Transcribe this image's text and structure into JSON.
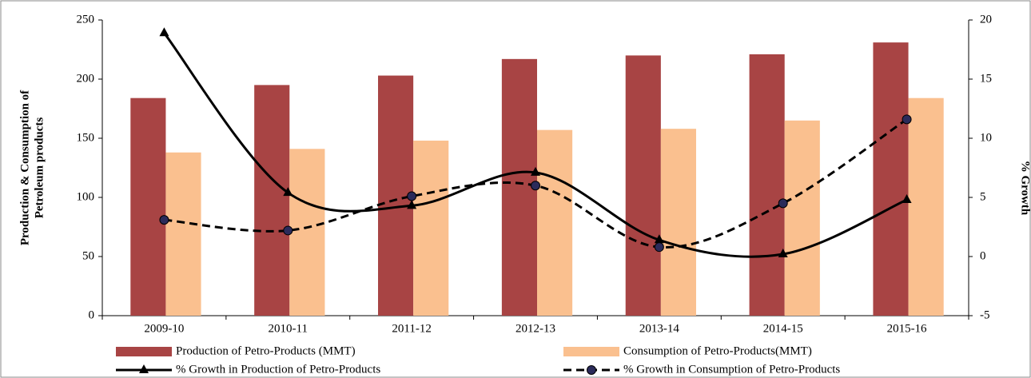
{
  "chart_data": {
    "type": "bar-line",
    "categories": [
      "2009-10",
      "2010-11",
      "2011-12",
      "2012-13",
      "2013-14",
      "2014-15",
      "2015-16"
    ],
    "ylabel": [
      "Production & Consumption of",
      "Petroleum products"
    ],
    "y2label": "% Growth",
    "ylim": [
      0,
      250
    ],
    "yticks": [
      0,
      50,
      100,
      150,
      200,
      250
    ],
    "y2lim": [
      -5,
      20
    ],
    "y2ticks": [
      -5,
      0,
      5,
      10,
      15,
      20
    ],
    "series": [
      {
        "name": "Production of Petro-Products (MMT)",
        "type": "bar",
        "color": "#a84444",
        "values": [
          184,
          195,
          203,
          217,
          220,
          221,
          231
        ]
      },
      {
        "name": "Consumption of Petro-Products(MMT)",
        "type": "bar",
        "color": "#fac08f",
        "values": [
          138,
          141,
          148,
          157,
          158,
          165,
          184
        ]
      },
      {
        "name": "% Growth in Production of Petro-Products",
        "type": "line",
        "axis": "y2",
        "color": "#000000",
        "dash": false,
        "marker": "triangle",
        "values": [
          18.9,
          5.4,
          4.3,
          7.1,
          1.4,
          0.2,
          4.8
        ]
      },
      {
        "name": "% Growth in Consumption of Petro-Products",
        "type": "line",
        "axis": "y2",
        "color": "#000000",
        "dash": true,
        "marker": "circle",
        "values": [
          3.1,
          2.2,
          5.1,
          6.0,
          0.8,
          4.5,
          11.6
        ]
      }
    ]
  }
}
